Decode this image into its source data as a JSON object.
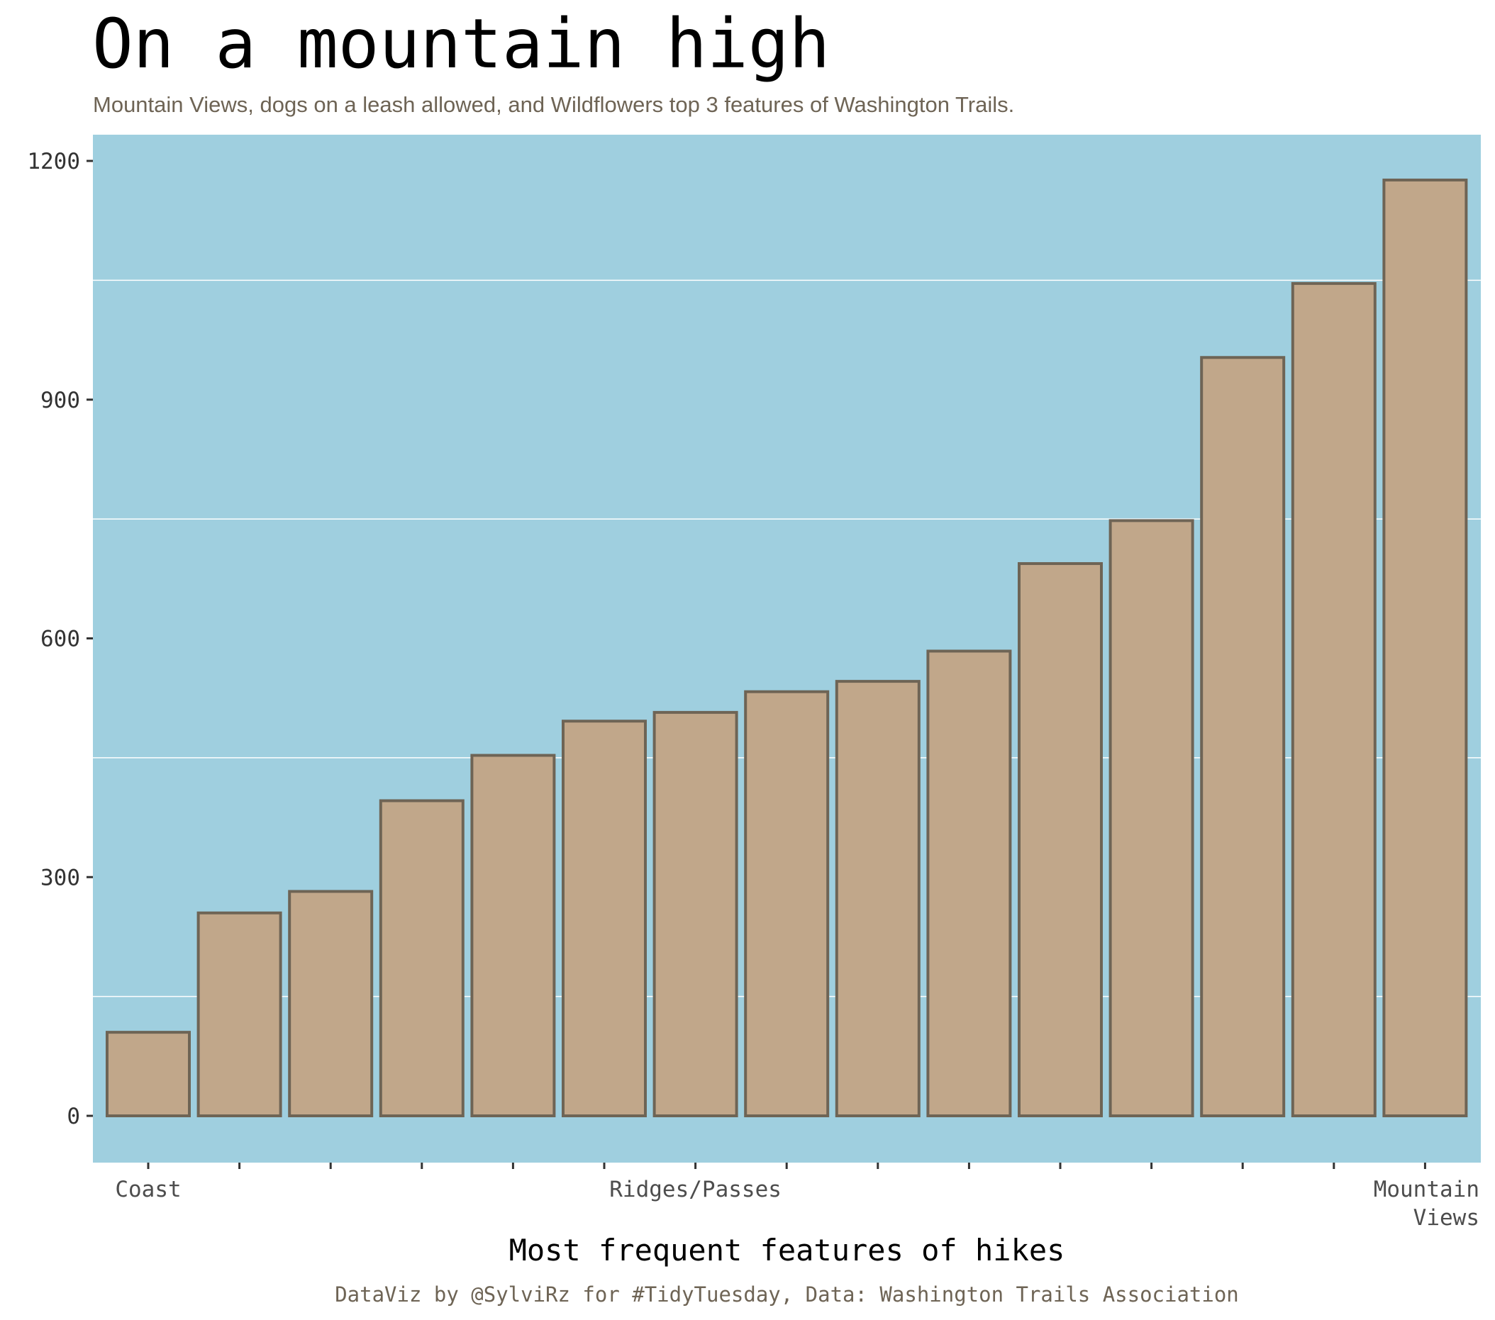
{
  "title": "On a mountain high",
  "subtitle": "Mountain Views, dogs on a leash allowed, and Wildflowers top 3 features of Washington Trails.",
  "caption": "DataViz by @SylviRz for #TidyTuesday, Data: Washington Trails Association",
  "colors": {
    "panel_background": "#9fcfdf",
    "bar_fill": "#c1a78a",
    "bar_outline": "#6e6455",
    "grid": "#ffffff",
    "title_text": "#000000",
    "subtitle_text": "#6e6455",
    "caption_text": "#6e6455",
    "tick_text": "#333333"
  },
  "chart_data": {
    "type": "bar",
    "title": "On a mountain high",
    "xlabel": "Most frequent features of hikes",
    "ylabel": "",
    "categories": [
      "Coast",
      "",
      "",
      "",
      "",
      "",
      "Ridges/Passes",
      "",
      "",
      "",
      "",
      "",
      "",
      "",
      "Mountain Views"
    ],
    "tick_labels": [
      {
        "index": 0,
        "text": "Coast"
      },
      {
        "index": 6,
        "text": "Ridges/Passes"
      },
      {
        "index": 14,
        "text": "Mountain\nViews"
      }
    ],
    "values": [
      105,
      255,
      282,
      396,
      453,
      496,
      507,
      533,
      546,
      584,
      694,
      748,
      953,
      1046,
      1176
    ],
    "ylim": [
      -58,
      1235
    ],
    "yticks": [
      0,
      300,
      600,
      900,
      1200
    ],
    "minor_grid": [
      150,
      450,
      750,
      1050
    ],
    "grid": "horizontal",
    "legend": "none"
  }
}
